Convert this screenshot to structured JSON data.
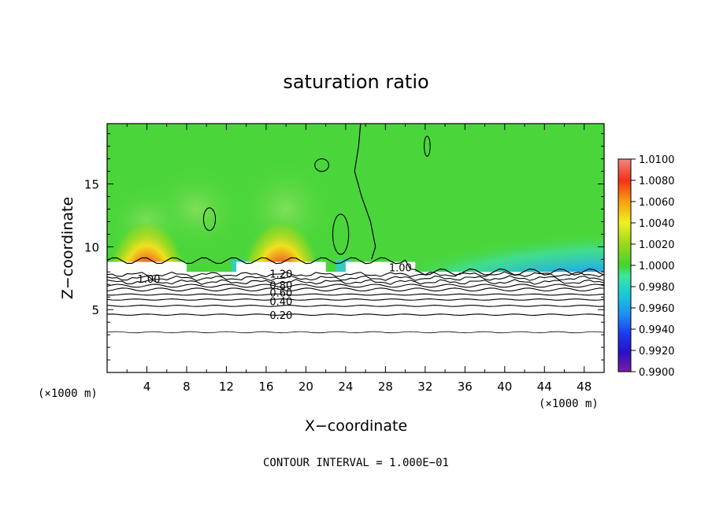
{
  "chart_data": {
    "type": "heatmap",
    "title": "saturation ratio",
    "xlabel": "X−coordinate",
    "ylabel": "Z−coordinate",
    "x_unit_left": "(×1000 m)",
    "x_unit_right": "(×1000 m)",
    "note": "CONTOUR INTERVAL = 1.000E−01",
    "xlim": [
      0,
      50
    ],
    "ylim": [
      0,
      19.8
    ],
    "x_ticks": [
      4,
      8,
      12,
      16,
      20,
      24,
      28,
      32,
      36,
      40,
      44,
      48
    ],
    "y_ticks": [
      5,
      10,
      15
    ],
    "colorbar": {
      "min": 0.99,
      "max": 1.01,
      "labels": [
        "1.0100",
        "1.0080",
        "1.0060",
        "1.0040",
        "1.0020",
        "1.0000",
        "0.9980",
        "0.9960",
        "0.9940",
        "0.9920",
        "0.9900"
      ],
      "colors": [
        "#7a1fa0",
        "#2a10c8",
        "#1a3cf0",
        "#1f8ff5",
        "#17c9d8",
        "#3ee6a0",
        "#44d42f",
        "#9ad81c",
        "#f0f020",
        "#f8a010",
        "#f43018",
        "#f08880"
      ]
    },
    "field": {
      "background": "#4ad63a",
      "cloud_base_z": 8.0,
      "cloud_top_z": 8.8,
      "supersaturated_cores": [
        {
          "x": 4,
          "z": 9.5,
          "value": 1.007
        },
        {
          "x": 17.5,
          "z": 9.5,
          "value": 1.007
        }
      ],
      "subsaturated_region": {
        "x_range": [
          31,
          50
        ],
        "z_range": [
          7.5,
          12
        ],
        "min_value": 0.9925
      }
    },
    "contour_levels": [
      0.1,
      0.2,
      0.3,
      0.4,
      0.5,
      0.6,
      0.7,
      0.8,
      0.9,
      1.0
    ],
    "contour_labels": [
      "1.00",
      "1.20",
      "0.80",
      "0.60",
      "0.40",
      "0.20",
      "1.00"
    ],
    "contour_heights_z": [
      3.2,
      4.6,
      5.3,
      5.8,
      6.2,
      6.6,
      6.9,
      7.2,
      7.5,
      7.8
    ]
  }
}
